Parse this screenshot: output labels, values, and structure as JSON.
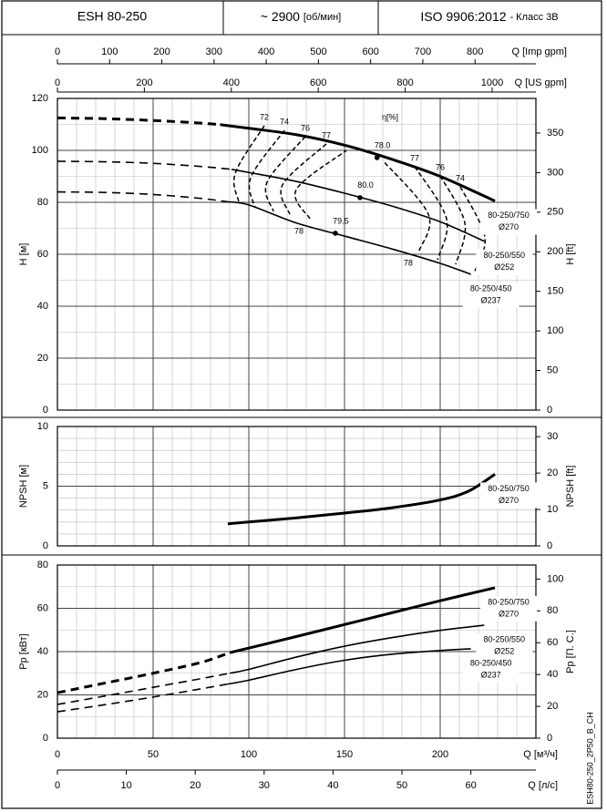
{
  "header": {
    "model": "ESH 80-250",
    "speed": "~ 2900",
    "speed_unit": "[об/мин]",
    "standard": "ISO 9906:2012",
    "class": "- Класс 3B"
  },
  "footer_code": "ESH80-250_2P50_B_CH",
  "chart_data": [
    {
      "type": "line",
      "y_label": "H [м]",
      "y2_label": "H [ft]",
      "xlim": [
        0,
        250
      ],
      "ylim": [
        0,
        120
      ],
      "yticks": [
        0,
        20,
        40,
        60,
        80,
        100,
        120
      ],
      "y2lim": [
        0,
        393.7
      ],
      "y2ticks": [
        0,
        50,
        100,
        150,
        200,
        250,
        300,
        350
      ],
      "grid": {
        "minor_x": 10,
        "minor_y": 10
      },
      "top_axes": [
        {
          "label": "Q [Imp gpm]",
          "lim": [
            0,
            916.6
          ],
          "ticks": [
            0,
            100,
            200,
            300,
            400,
            500,
            600,
            700,
            800
          ]
        },
        {
          "label": "Q [US gpm]",
          "lim": [
            0,
            1100.7
          ],
          "ticks": [
            0,
            200,
            400,
            600,
            800,
            1000
          ]
        }
      ],
      "series": [
        {
          "name": "80-250/750",
          "label": "Ø270",
          "color": "#000000",
          "width": 3,
          "x_dashed": [
            0,
            25,
            50,
            75,
            85
          ],
          "values_dashed": [
            112.5,
            112.2,
            111.5,
            110.5,
            109.9
          ],
          "x": [
            85,
            100,
            125,
            150,
            175,
            200,
            228.6
          ],
          "values": [
            109.9,
            108.5,
            106,
            102,
            96.5,
            90,
            80.5
          ]
        },
        {
          "name": "80-250/550",
          "label": "Ø252",
          "color": "#000000",
          "width": 1.6,
          "x_dashed": [
            0,
            25,
            50,
            75,
            91
          ],
          "values_dashed": [
            95.8,
            95.6,
            95,
            93.8,
            92.7
          ],
          "x": [
            91,
            100,
            125,
            150,
            175,
            200,
            223
          ],
          "values": [
            92.7,
            91.5,
            88,
            83.5,
            78.5,
            72.5,
            65
          ]
        },
        {
          "name": "80-250/450",
          "label": "Ø237",
          "color": "#000000",
          "width": 1.6,
          "x_dashed": [
            0,
            25,
            50,
            75,
            89
          ],
          "values_dashed": [
            84,
            83.8,
            83,
            81.5,
            80.2
          ],
          "x": [
            89,
            100,
            125,
            150,
            175,
            200,
            216
          ],
          "values": [
            80.2,
            79,
            72,
            67,
            62,
            56.5,
            52.3
          ]
        }
      ],
      "efficiency_label": "η[%]",
      "efficiency": [
        {
          "label": "72",
          "q": [
            108.1,
            92.9,
            94.8
          ],
          "h": [
            109.5,
            91.2,
            80
          ]
        },
        {
          "label": "74",
          "q": [
            118.6,
            101,
            103.3
          ],
          "h": [
            107.7,
            89.5,
            77.9
          ]
        },
        {
          "label": "76",
          "q": [
            129.5,
            109.5,
            112.9
          ],
          "h": [
            105.3,
            87.7,
            76.5
          ]
        },
        {
          "label": "77",
          "q": [
            140.5,
            117.6,
            121.4
          ],
          "h": [
            102.5,
            86.7,
            75.4
          ]
        },
        {
          "label": "78",
          "q": [
            131.9,
            124.8,
            151
          ],
          "h": [
            73.7,
            84.9,
            100
          ]
        },
        {
          "label": "78",
          "q": [
            189,
            193.8,
            170
          ],
          "h": [
            61.4,
            75.4,
            96.1
          ]
        },
        {
          "label": "77",
          "q": [
            186.7,
            203.3,
            198.6
          ],
          "h": [
            93.7,
            73.7,
            57.9
          ]
        },
        {
          "label": "76",
          "q": [
            200,
            212.9,
            208.1
          ],
          "h": [
            90.2,
            71.9,
            56.1
          ]
        },
        {
          "label": "74",
          "q": [
            210.5,
            223.3,
            217.6
          ],
          "h": [
            86,
            66.7,
            52.6
          ]
        }
      ],
      "bep": [
        {
          "label": "78.0",
          "q": 167,
          "h": 97.2
        },
        {
          "label": "80.0",
          "q": 158.1,
          "h": 81.8
        },
        {
          "label": "79.5",
          "q": 145.2,
          "h": 68.1
        }
      ]
    },
    {
      "type": "line",
      "y_label": "NPSH [м]",
      "y2_label": "NPSH [ft]",
      "xlim": [
        0,
        250
      ],
      "ylim": [
        0,
        10
      ],
      "yticks": [
        0,
        5,
        10
      ],
      "y2lim": [
        0,
        32.8
      ],
      "y2ticks": [
        0,
        10,
        20,
        30
      ],
      "grid": {
        "minor_x": 10,
        "minor_y": 1
      },
      "series": [
        {
          "name": "80-250/750",
          "label": "Ø270",
          "color": "#000000",
          "width": 3,
          "x": [
            89,
            100,
            125,
            150,
            175,
            200,
            215,
            228.6
          ],
          "values": [
            1.85,
            2,
            2.35,
            2.75,
            3.2,
            3.85,
            4.6,
            6
          ]
        }
      ]
    },
    {
      "type": "line",
      "y_label": "Pp [кВт]",
      "y2_label": "Pp [П. С.]",
      "xlim": [
        0,
        250
      ],
      "ylim": [
        0,
        80
      ],
      "yticks": [
        0,
        20,
        40,
        60,
        80
      ],
      "y2lim": [
        0,
        108.8
      ],
      "y2ticks": [
        0,
        20,
        40,
        60,
        80,
        100
      ],
      "grid": {
        "minor_x": 10,
        "minor_y": 10
      },
      "xlabel": "Q [м³/ч]",
      "xticks": [
        0,
        50,
        100,
        150,
        200
      ],
      "x2label": "Q [л/с]",
      "x2lim": [
        0,
        69.44
      ],
      "x2ticks": [
        0,
        10,
        20,
        30,
        40,
        50,
        60
      ],
      "series": [
        {
          "name": "80-250/750",
          "label": "Ø270",
          "color": "#000000",
          "width": 3,
          "x_dashed": [
            0,
            25,
            50,
            75,
            90
          ],
          "values_dashed": [
            21,
            25.5,
            30,
            35,
            39.5
          ],
          "x": [
            90,
            125,
            150,
            175,
            200,
            228.6
          ],
          "values": [
            39.5,
            47,
            52.5,
            58,
            63.5,
            69.5
          ]
        },
        {
          "name": "80-250/550",
          "label": "Ø252",
          "color": "#000000",
          "width": 1.6,
          "x_dashed": [
            0,
            25,
            50,
            75,
            90
          ],
          "values_dashed": [
            15.6,
            19.5,
            23.5,
            27.5,
            30
          ],
          "x": [
            90,
            100,
            125,
            150,
            175,
            200,
            223
          ],
          "values": [
            30,
            31.8,
            37.5,
            42.5,
            46.5,
            49.8,
            52.2
          ]
        },
        {
          "name": "80-250/450",
          "label": "Ø237",
          "color": "#000000",
          "width": 1.6,
          "x_dashed": [
            0,
            25,
            50,
            75,
            89
          ],
          "values_dashed": [
            12.2,
            15.5,
            19,
            22.8,
            25
          ],
          "x": [
            89,
            100,
            125,
            150,
            175,
            200,
            216
          ],
          "values": [
            25,
            26.8,
            31.8,
            36,
            38.8,
            40.5,
            41.3
          ]
        }
      ]
    }
  ]
}
